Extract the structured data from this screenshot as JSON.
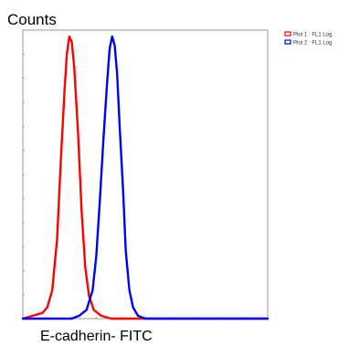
{
  "chart_data": {
    "type": "line",
    "title": "",
    "xlabel": "E-cadherin- FITC",
    "ylabel": "Counts",
    "xscale": "log",
    "xlim": [
      0,
      1
    ],
    "ylim": [
      0,
      1
    ],
    "grid": false,
    "legend_position": "top-right",
    "series": [
      {
        "name": "Plot 1 : FL1 Log",
        "color": "#ff0000",
        "points": [
          [
            0.0,
            0.0
          ],
          [
            0.04,
            0.01
          ],
          [
            0.08,
            0.02
          ],
          [
            0.1,
            0.04
          ],
          [
            0.12,
            0.1
          ],
          [
            0.14,
            0.28
          ],
          [
            0.155,
            0.55
          ],
          [
            0.17,
            0.8
          ],
          [
            0.18,
            0.93
          ],
          [
            0.19,
            0.99
          ],
          [
            0.2,
            0.97
          ],
          [
            0.21,
            0.88
          ],
          [
            0.225,
            0.66
          ],
          [
            0.24,
            0.38
          ],
          [
            0.255,
            0.18
          ],
          [
            0.27,
            0.08
          ],
          [
            0.29,
            0.03
          ],
          [
            0.32,
            0.01
          ],
          [
            0.36,
            0.0
          ],
          [
            1.0,
            0.0
          ]
        ]
      },
      {
        "name": "Plot 2 : FL1 Log",
        "color": "#0000ff",
        "points": [
          [
            0.0,
            0.0
          ],
          [
            0.2,
            0.0
          ],
          [
            0.23,
            0.01
          ],
          [
            0.26,
            0.03
          ],
          [
            0.285,
            0.1
          ],
          [
            0.3,
            0.22
          ],
          [
            0.315,
            0.42
          ],
          [
            0.33,
            0.64
          ],
          [
            0.345,
            0.84
          ],
          [
            0.355,
            0.95
          ],
          [
            0.365,
            0.99
          ],
          [
            0.375,
            0.96
          ],
          [
            0.385,
            0.86
          ],
          [
            0.395,
            0.68
          ],
          [
            0.41,
            0.44
          ],
          [
            0.42,
            0.24
          ],
          [
            0.435,
            0.1
          ],
          [
            0.45,
            0.04
          ],
          [
            0.47,
            0.01
          ],
          [
            0.5,
            0.0
          ],
          [
            1.0,
            0.0
          ]
        ]
      }
    ]
  }
}
